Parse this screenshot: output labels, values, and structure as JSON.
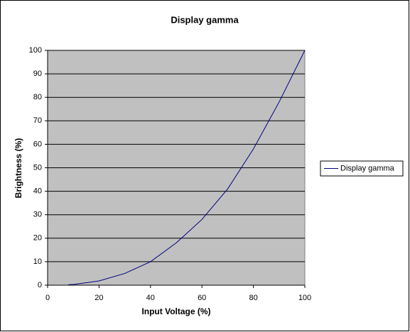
{
  "chart_data": {
    "type": "line",
    "title": "Display gamma",
    "x_label": "Input Voltage (%)",
    "y_label": "Brightness (%)",
    "x": [
      8,
      10,
      20,
      30,
      40,
      50,
      60,
      70,
      80,
      90,
      100
    ],
    "series": [
      {
        "name": "Display gamma",
        "color": "#000080",
        "values": [
          0.2,
          0.3,
          1.8,
          5,
          10,
          18,
          28,
          41,
          58,
          78,
          100
        ]
      }
    ],
    "xlim": [
      0,
      100
    ],
    "xticks": [
      0,
      20,
      40,
      60,
      80,
      100
    ],
    "ylim": [
      0,
      100
    ],
    "yticks": [
      0,
      10,
      20,
      30,
      40,
      50,
      60,
      70,
      80,
      90,
      100
    ],
    "grid": true,
    "legend": "right",
    "plot_background": "#c0c0c0"
  }
}
